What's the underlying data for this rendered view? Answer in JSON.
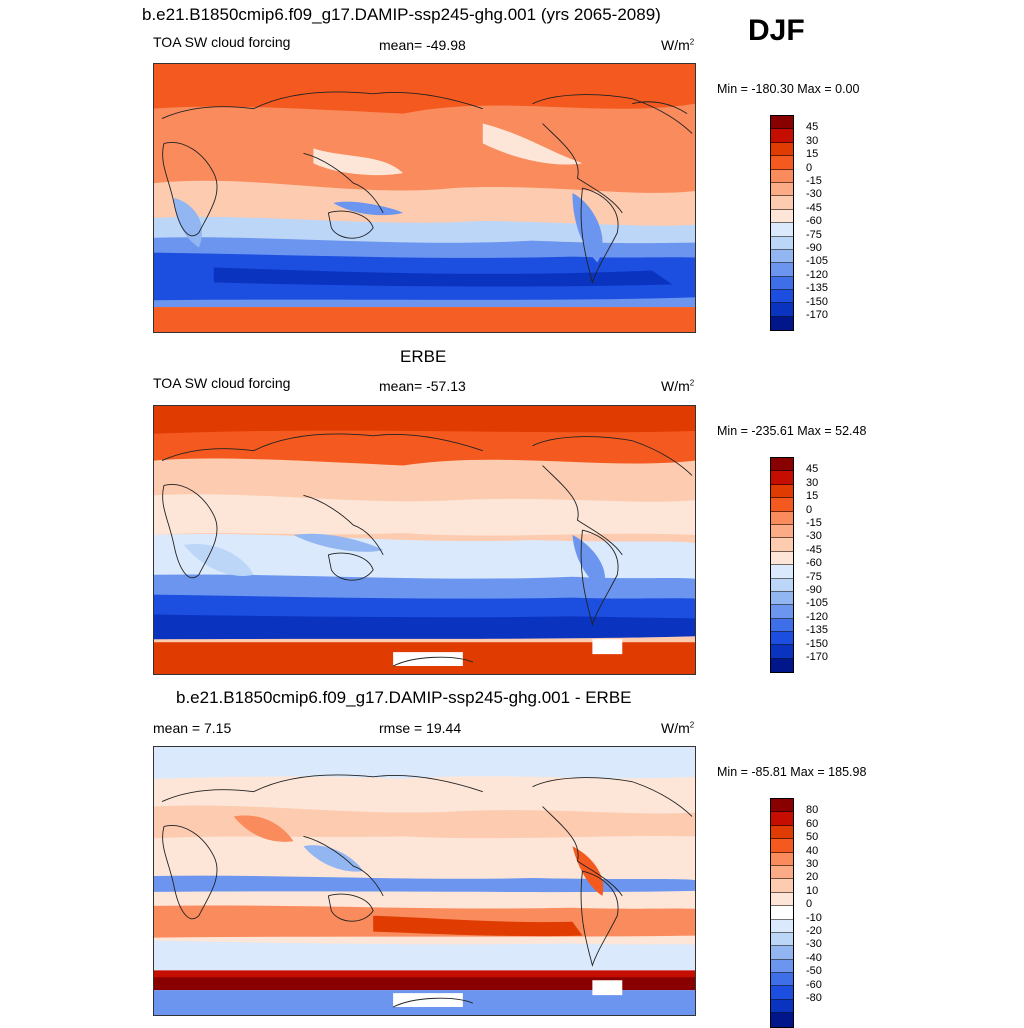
{
  "season": "DJF",
  "colors": {
    "abs": [
      "#890000",
      "#c50e00",
      "#e03b00",
      "#f45a20",
      "#f98b5d",
      "#fbab86",
      "#fccbb0",
      "#fde6d8",
      "#dae9fb",
      "#bcd6f8",
      "#92b6f2",
      "#6b95ee",
      "#3f6ee9",
      "#1c4ee0",
      "#0a33c0",
      "#00168a"
    ],
    "diff": [
      "#890000",
      "#c50e00",
      "#e03b00",
      "#f45a20",
      "#f98b5d",
      "#fbab86",
      "#fccbb0",
      "#fde6d8",
      "#ffffff",
      "#dae9fb",
      "#bcd6f8",
      "#92b6f2",
      "#6b95ee",
      "#3f6ee9",
      "#1c4ee0",
      "#0a33c0",
      "#00168a"
    ]
  },
  "panels": [
    {
      "heading": "b.e21.B1850cmip6.f09_g17.DAMIP-ssp245-ghg.001 (yrs 2065-2089)",
      "left_label": "TOA SW cloud forcing",
      "center_label": "mean= -49.98",
      "units": "W/m",
      "units_sup": "2",
      "minmax": "Min = -180.30 Max =   0.00",
      "colorbar_labels": [
        "45",
        "30",
        "15",
        "0",
        "-15",
        "-30",
        "-45",
        "-60",
        "-75",
        "-90",
        "-105",
        "-120",
        "-135",
        "-150",
        "-170"
      ]
    },
    {
      "heading": "ERBE",
      "left_label": "TOA SW cloud forcing",
      "center_label": "mean= -57.13",
      "units": "W/m",
      "units_sup": "2",
      "minmax": "Min = -235.61 Max =  52.48",
      "colorbar_labels": [
        "45",
        "30",
        "15",
        "0",
        "-15",
        "-30",
        "-45",
        "-60",
        "-75",
        "-90",
        "-105",
        "-120",
        "-135",
        "-150",
        "-170"
      ]
    },
    {
      "heading": "b.e21.B1850cmip6.f09_g17.DAMIP-ssp245-ghg.001 - ERBE",
      "left_label": "mean =   7.15",
      "center_label": "rmse =  19.44",
      "units": "W/m",
      "units_sup": "2",
      "minmax": "Min = -85.81 Max = 185.98",
      "colorbar_labels": [
        "80",
        "60",
        "50",
        "40",
        "30",
        "20",
        "10",
        "0",
        "-10",
        "-20",
        "-30",
        "-40",
        "-50",
        "-60",
        "-80"
      ]
    }
  ]
}
